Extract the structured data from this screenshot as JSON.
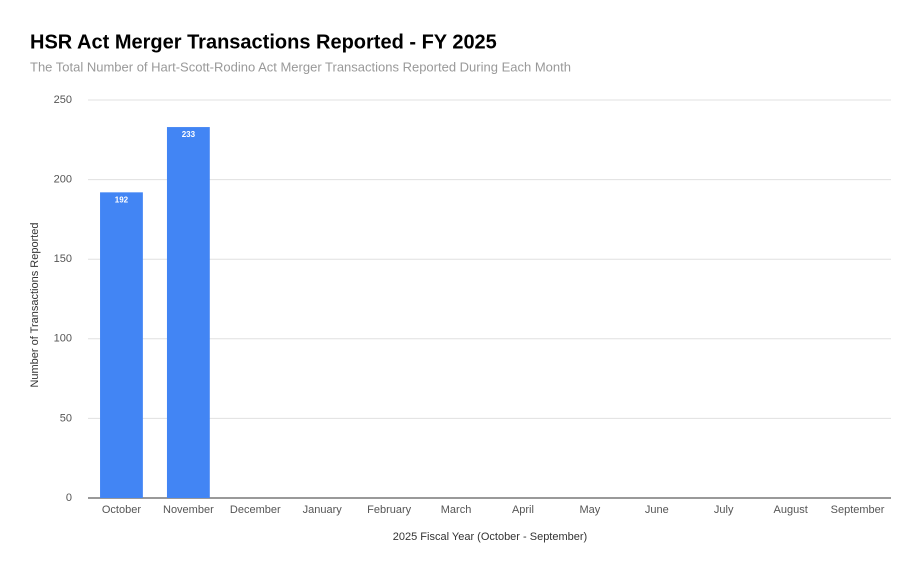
{
  "chart_data": {
    "type": "bar",
    "title": "HSR Act Merger Transactions Reported - FY 2025",
    "subtitle": "The Total Number of Hart-Scott-Rodino Act Merger Transactions Reported During Each Month",
    "x_label": "2025 Fiscal Year (October - September)",
    "y_label": "Number of Transactions Reported",
    "categories": [
      "October",
      "November",
      "December",
      "January",
      "February",
      "March",
      "April",
      "May",
      "June",
      "July",
      "August",
      "September"
    ],
    "values": [
      192,
      233,
      null,
      null,
      null,
      null,
      null,
      null,
      null,
      null,
      null,
      null
    ],
    "color": "#4285f4",
    "ylim": [
      0,
      250
    ],
    "yticks": [
      0,
      50,
      100,
      150,
      200,
      250
    ],
    "grid": true,
    "data_labels": true
  }
}
